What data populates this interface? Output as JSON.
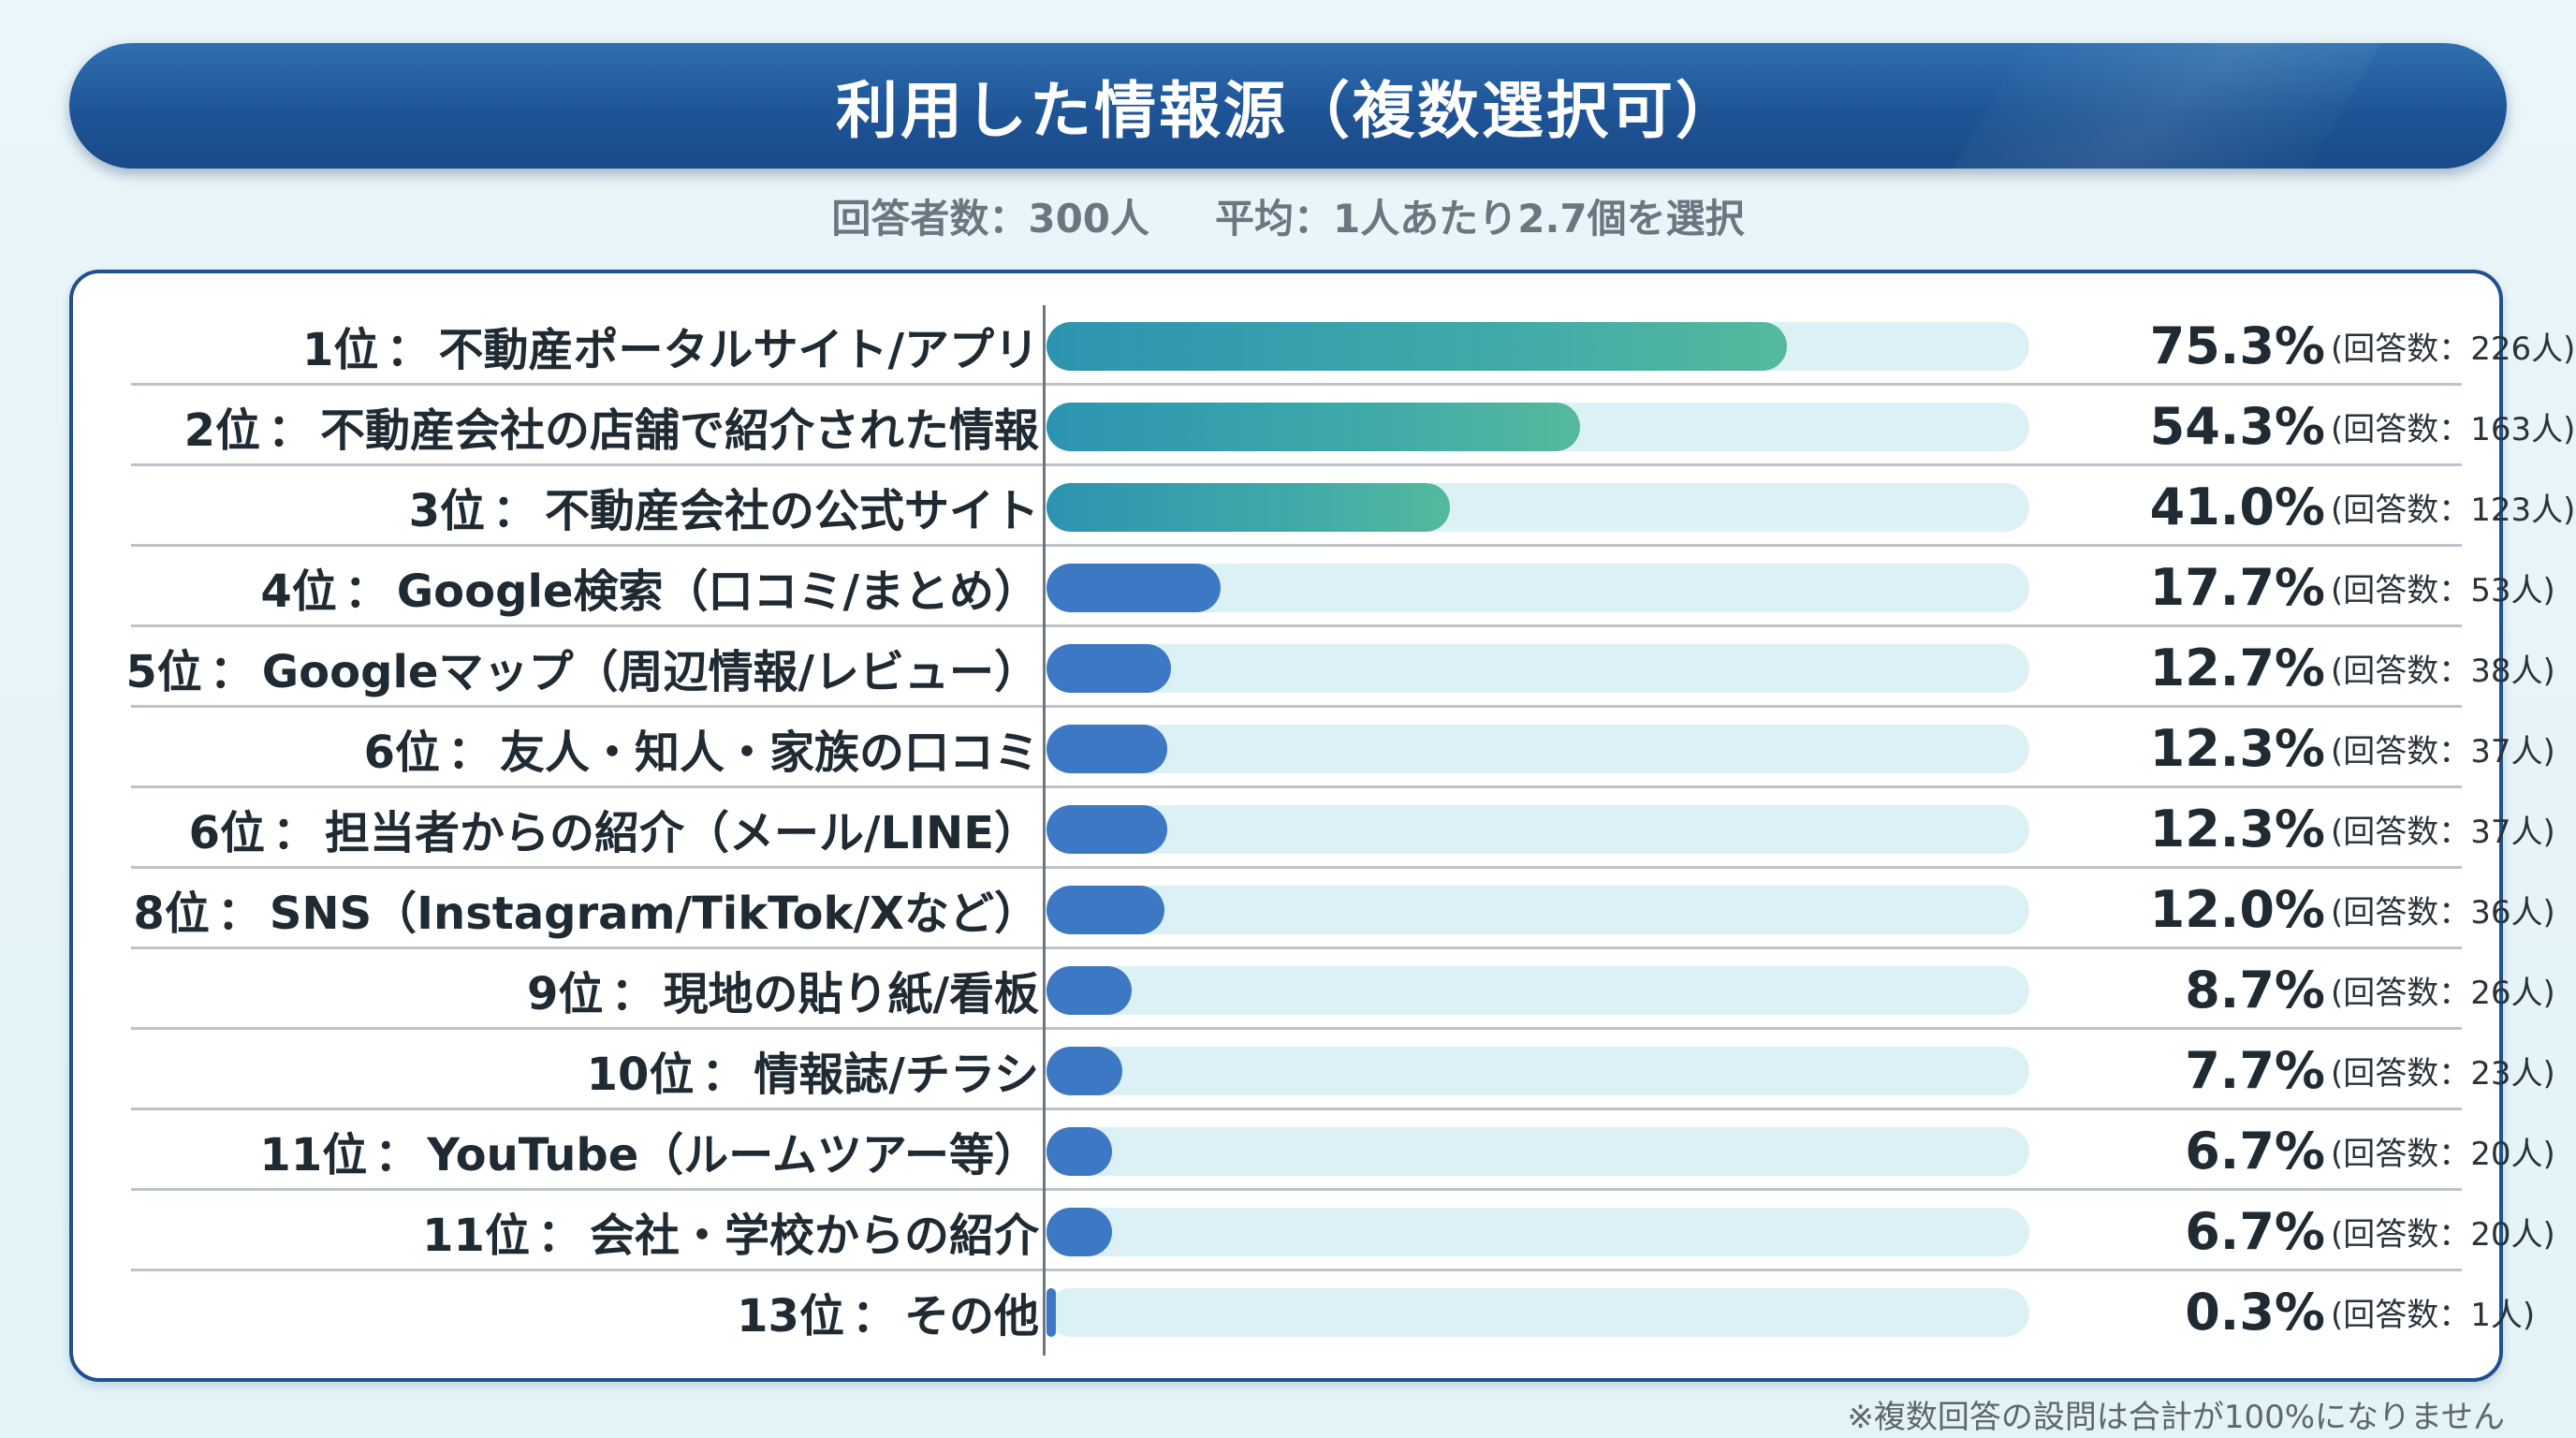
{
  "title": "利用した情報源（複数選択可）",
  "subtitle": {
    "respondents": "回答者数：300人",
    "average": "平均：1人あたり2.7個を選択"
  },
  "footnote": "※複数回答の設問は合計が100%になりません",
  "colors": {
    "teal": "#3fa9a9",
    "blue": "#3d78c4",
    "track": "#dcf1f5",
    "title_bg": "#1e5496"
  },
  "chart_data": {
    "type": "bar",
    "orientation": "horizontal",
    "title": "利用した情報源（複数選択可）",
    "xlim": [
      0,
      100
    ],
    "rows": [
      {
        "rank": "1位",
        "name": "不動産ポータルサイト/アプリ",
        "value": 75.3,
        "pct_label": "75.3%",
        "count_label": "(回答数：226人)",
        "color": "teal"
      },
      {
        "rank": "2位",
        "name": "不動産会社の店舗で紹介された情報",
        "value": 54.3,
        "pct_label": "54.3%",
        "count_label": "(回答数：163人)",
        "color": "teal"
      },
      {
        "rank": "3位",
        "name": "不動産会社の公式サイト",
        "value": 41.0,
        "pct_label": "41.0%",
        "count_label": "(回答数：123人)",
        "color": "teal"
      },
      {
        "rank": "4位",
        "name": "Google検索（口コミ/まとめ）",
        "value": 17.7,
        "pct_label": "17.7%",
        "count_label": "(回答数：53人)",
        "color": "blue"
      },
      {
        "rank": "5位",
        "name": "Googleマップ（周辺情報/レビュー）",
        "value": 12.7,
        "pct_label": "12.7%",
        "count_label": "(回答数：38人)",
        "color": "blue"
      },
      {
        "rank": "6位",
        "name": "友人・知人・家族の口コミ",
        "value": 12.3,
        "pct_label": "12.3%",
        "count_label": "(回答数：37人)",
        "color": "blue"
      },
      {
        "rank": "6位",
        "name": "担当者からの紹介（メール/LINE）",
        "value": 12.3,
        "pct_label": "12.3%",
        "count_label": "(回答数：37人)",
        "color": "blue"
      },
      {
        "rank": "8位",
        "name": "SNS（Instagram/TikTok/Xなど）",
        "value": 12.0,
        "pct_label": "12.0%",
        "count_label": "(回答数：36人)",
        "color": "blue"
      },
      {
        "rank": "9位",
        "name": "現地の貼り紙/看板",
        "value": 8.7,
        "pct_label": "8.7%",
        "count_label": "(回答数：26人)",
        "color": "blue"
      },
      {
        "rank": "10位",
        "name": "情報誌/チラシ",
        "value": 7.7,
        "pct_label": "7.7%",
        "count_label": "(回答数：23人)",
        "color": "blue"
      },
      {
        "rank": "11位",
        "name": "YouTube（ルームツアー等）",
        "value": 6.7,
        "pct_label": "6.7%",
        "count_label": "(回答数：20人)",
        "color": "blue"
      },
      {
        "rank": "11位",
        "name": "会社・学校からの紹介",
        "value": 6.7,
        "pct_label": "6.7%",
        "count_label": "(回答数：20人)",
        "color": "blue"
      },
      {
        "rank": "13位",
        "name": "その他",
        "value": 0.3,
        "pct_label": "0.3%",
        "count_label": "(回答数：1人)",
        "color": "blue"
      }
    ],
    "separator": "："
  }
}
